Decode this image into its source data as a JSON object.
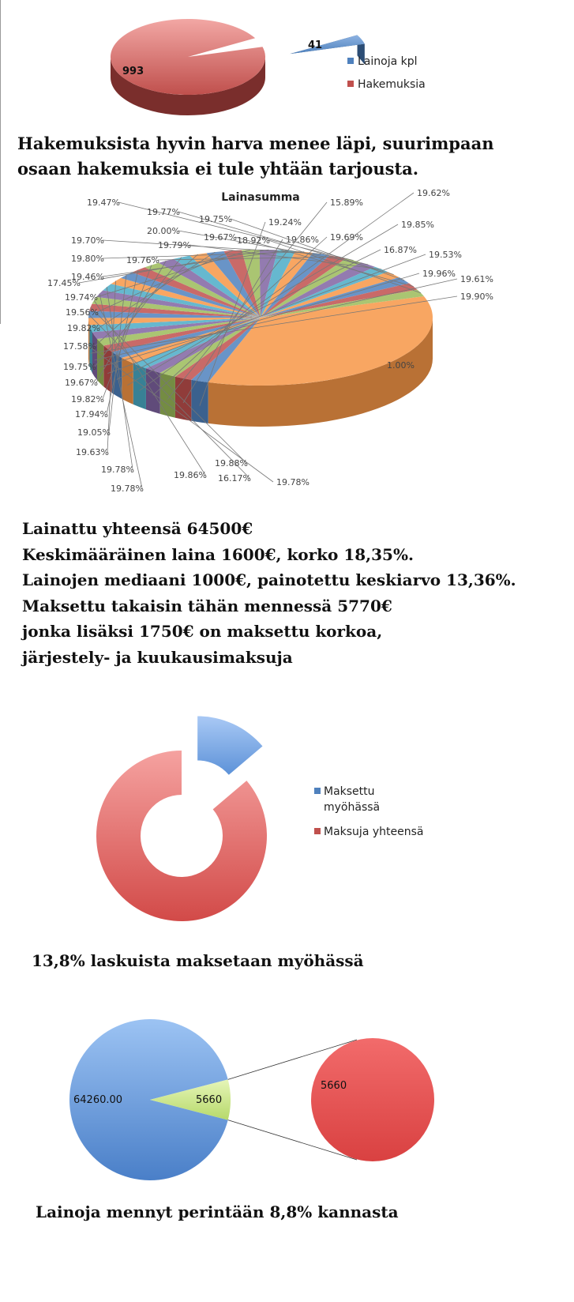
{
  "texts": {
    "heading1": [
      "Hakemuksista hyvin harva menee läpi, suurimpaan",
      "osaan hakemuksia ei tule yhtään tarjousta."
    ],
    "stats": [
      "Lainattu yhteensä 64500€",
      "Keskimääräinen laina 1600€, korko 18,35%.",
      "Lainojen mediaani 1000€, painotettu keskiarvo 13,36%.",
      "Maksettu takaisin tähän mennessä 5770€",
      "jonka lisäksi 1750€ on maksettu korkoa,",
      "järjestely- ja kuukausimaksuja"
    ],
    "late_caption": "13,8% laskuista maksetaan myöhässä",
    "collection_caption": "Lainoja mennyt perintään 8,8% kannasta"
  },
  "colors": {
    "blue": "#4f81bd",
    "red": "#c0504d",
    "green": "#9bbb59",
    "orange": "#f79646",
    "purple": "#8064a2",
    "aqua": "#4bacc6",
    "lightgreen": "#c4de8c"
  },
  "chart_data": [
    {
      "type": "pie",
      "title": "",
      "categories": [
        "Lainoja kpl",
        "Hakemuksia"
      ],
      "values": [
        41,
        993
      ],
      "data_labels": [
        "41",
        "993"
      ],
      "legend": "right",
      "colors": [
        "#4f81bd",
        "#c0504d"
      ],
      "exploded": [
        "Lainoja kpl"
      ],
      "style": "3d"
    },
    {
      "type": "pie",
      "title": "Lainasumma",
      "style": "3d",
      "legend": "none",
      "big_slice_label": "1.00%",
      "labels": [
        "19.24%",
        "19.86%",
        "15.89%",
        "19.69%",
        "19.62%",
        "19.85%",
        "16.87%",
        "19.53%",
        "19.96%",
        "19.61%",
        "19.90%",
        "19.78%",
        "16.17%",
        "19.88%",
        "19.86%",
        "19.78%",
        "19.78%",
        "19.63%",
        "19.05%",
        "17.94%",
        "19.82%",
        "19.67%",
        "19.75%",
        "17.58%",
        "19.82%",
        "19.56%",
        "19.74%",
        "17.45%",
        "19.46%",
        "19.80%",
        "19.70%",
        "19.76%",
        "19.47%",
        "20.00%",
        "19.79%",
        "19.77%",
        "19.75%",
        "19.67%",
        "18.92%"
      ]
    },
    {
      "type": "pie",
      "style": "donut",
      "categories": [
        "Maksettu myöhässä",
        "Maksuja yhteensä"
      ],
      "values": [
        13.8,
        86.2
      ],
      "legend": "right",
      "colors": [
        "#4f81bd",
        "#c0504d"
      ],
      "exploded": [
        "Maksettu myöhässä"
      ]
    },
    {
      "type": "pie",
      "style": "pie-of-pie",
      "categories": [
        "",
        ""
      ],
      "values": [
        64260.0,
        5660
      ],
      "data_labels": [
        "64260.00",
        "5660"
      ],
      "secondary_label": "5660",
      "colors": [
        "#4f81bd",
        "#9bbb59",
        "#c0504d"
      ]
    }
  ]
}
